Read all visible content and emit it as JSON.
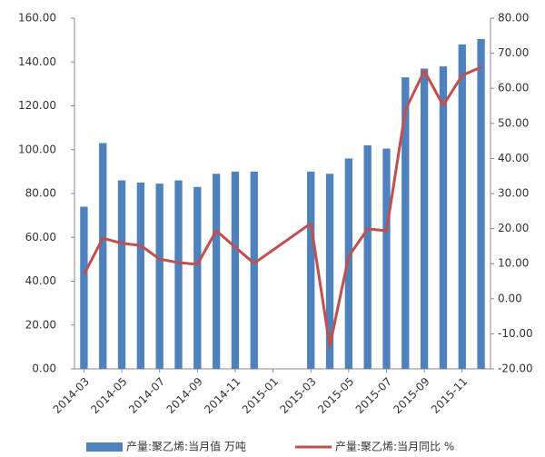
{
  "chart_data": {
    "type": "bar_line",
    "categories": [
      "2014-03",
      null,
      "2014-05",
      null,
      "2014-07",
      null,
      "2014-09",
      null,
      "2014-11",
      null,
      "2015-01",
      null,
      "2015-03",
      null,
      "2015-05",
      null,
      "2015-07",
      null,
      "2015-09",
      null,
      "2015-11",
      null
    ],
    "series": [
      {
        "name": "产量:聚乙烯:当月值 万吨",
        "type": "bar",
        "color": "#4f81bd",
        "values": [
          74,
          103,
          86,
          85,
          84.5,
          86,
          83,
          89,
          90,
          90,
          null,
          null,
          90,
          89,
          96,
          102,
          100.5,
          133,
          137,
          138,
          148,
          150.5
        ]
      },
      {
        "name": "产量:聚乙烯:当月同比 %",
        "type": "line",
        "axis": "y2",
        "color": "#c0504d",
        "values": [
          6.9,
          17.3,
          15.8,
          15.2,
          11.3,
          10.3,
          9.8,
          19.4,
          14.7,
          10.1,
          null,
          null,
          21.5,
          -13.5,
          12.1,
          19.9,
          19.4,
          53.8,
          65,
          55.1,
          63.7,
          66
        ]
      }
    ],
    "connect_gaps": true,
    "ylim": [
      0,
      160
    ],
    "yticks": [
      {
        "value": 0,
        "label": "0.00"
      },
      {
        "value": 20,
        "label": "20.00"
      },
      {
        "value": 40,
        "label": "40.00"
      },
      {
        "value": 60,
        "label": "60.00"
      },
      {
        "value": 80,
        "label": "80.00"
      },
      {
        "value": 100,
        "label": "100.00"
      },
      {
        "value": 120,
        "label": "120.00"
      },
      {
        "value": 140,
        "label": "140.00"
      },
      {
        "value": 160,
        "label": "160.00"
      }
    ],
    "y2lim": [
      -20,
      80
    ],
    "y2ticks": [
      {
        "value": -20,
        "label": "-20.00"
      },
      {
        "value": -10,
        "label": "-10.00"
      },
      {
        "value": 0,
        "label": "0.00"
      },
      {
        "value": 10,
        "label": "10.00"
      },
      {
        "value": 20,
        "label": "20.00"
      },
      {
        "value": 30,
        "label": "30.00"
      },
      {
        "value": 40,
        "label": "40.00"
      },
      {
        "value": 50,
        "label": "50.00"
      },
      {
        "value": 60,
        "label": "60.00"
      },
      {
        "value": 70,
        "label": "70.00"
      },
      {
        "value": 80,
        "label": "80.00"
      }
    ],
    "grid": false,
    "legend": "bottom"
  }
}
